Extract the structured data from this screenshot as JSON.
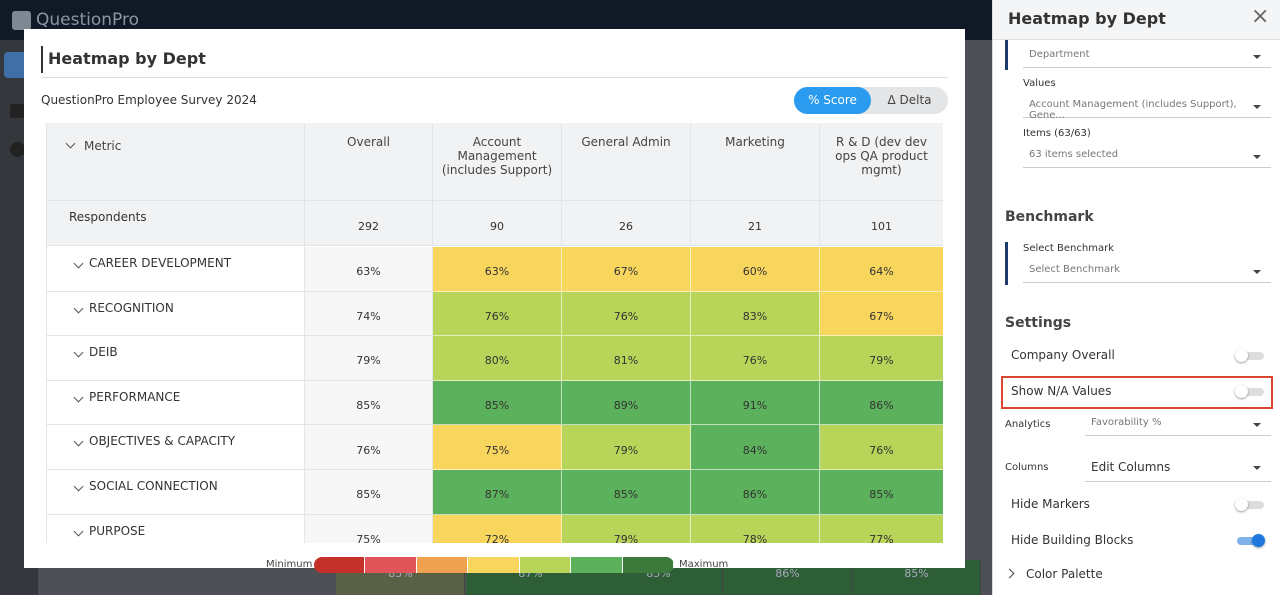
{
  "app": {
    "brand": "QuestionPro"
  },
  "modal": {
    "title": "Heatmap by Dept",
    "survey": "QuestionPro Employee Survey 2024",
    "toggle": [
      "% Score",
      "Δ Delta"
    ],
    "table": {
      "header": [
        "Metric",
        "Overall",
        "Account Management (includes Support)",
        "General Admin",
        "Marketing",
        "R & D (dev dev ops QA product mgmt)"
      ],
      "respondents": {
        "label": "Respondents",
        "values": [
          292,
          90,
          26,
          21,
          101
        ]
      },
      "rows": [
        {
          "label": "CAREER DEVELOPMENT",
          "values": [
            "63%",
            "63%",
            "67%",
            "60%",
            "64%"
          ],
          "colors": [
            "#f8d65e",
            "#f8d65e",
            "#f8d65e",
            "#f8d65e"
          ]
        },
        {
          "label": "RECOGNITION",
          "values": [
            "74%",
            "76%",
            "76%",
            "83%",
            "67%"
          ],
          "colors": [
            "#b8d55a",
            "#b8d55a",
            "#b8d55a",
            "#f8d65e"
          ]
        },
        {
          "label": "DEIB",
          "values": [
            "79%",
            "80%",
            "81%",
            "76%",
            "79%"
          ],
          "colors": [
            "#b8d55a",
            "#b8d55a",
            "#b8d55a",
            "#b8d55a"
          ]
        },
        {
          "label": "PERFORMANCE",
          "values": [
            "85%",
            "85%",
            "89%",
            "91%",
            "86%"
          ],
          "colors": [
            "#5cb25c",
            "#5cb25c",
            "#5cb25c",
            "#5cb25c"
          ]
        },
        {
          "label": "OBJECTIVES & CAPACITY",
          "values": [
            "76%",
            "75%",
            "79%",
            "84%",
            "76%"
          ],
          "colors": [
            "#f8d65e",
            "#b8d55a",
            "#5cb25c",
            "#b8d55a"
          ]
        },
        {
          "label": "SOCIAL CONNECTION",
          "values": [
            "85%",
            "87%",
            "85%",
            "86%",
            "85%"
          ],
          "colors": [
            "#5cb25c",
            "#5cb25c",
            "#5cb25c",
            "#5cb25c"
          ]
        },
        {
          "label": "PURPOSE",
          "values": [
            "75%",
            "72%",
            "79%",
            "78%",
            "77%"
          ],
          "colors": [
            "#f8d65e",
            "#b8d55a",
            "#b8d55a",
            "#b8d55a"
          ]
        }
      ]
    },
    "legend": {
      "min": "Minimum",
      "max": "Maximum",
      "palette": [
        "#c4312b",
        "#e0545a",
        "#f0a150",
        "#f8d65e",
        "#b8d55a",
        "#5cb25c",
        "#3c7a3c"
      ]
    }
  },
  "background": {
    "values": [
      "85%",
      "87%",
      "85%",
      "86%",
      "85%"
    ]
  },
  "panel": {
    "title": "Heatmap by Dept",
    "close": "×",
    "department": "Department",
    "values_label": "Values",
    "values_select": "Account Management (includes Support), Gene...",
    "items_label": "Items (63/63)",
    "items_select": "63 items selected",
    "benchmark": "Benchmark",
    "benchmark_label": "Select Benchmark",
    "benchmark_select": "Select Benchmark",
    "settings": "Settings",
    "toggles": [
      {
        "label": "Company Overall",
        "on": false
      },
      {
        "label": "Show N/A Values",
        "on": false
      }
    ],
    "analytics_label": "Analytics",
    "analytics_select": "Favorability %",
    "columns_label": "Columns",
    "columns_select": "Edit Columns",
    "toggles2": [
      {
        "label": "Hide Markers",
        "on": false
      },
      {
        "label": "Hide Building Blocks",
        "on": true
      }
    ],
    "palette": "Color Palette"
  }
}
